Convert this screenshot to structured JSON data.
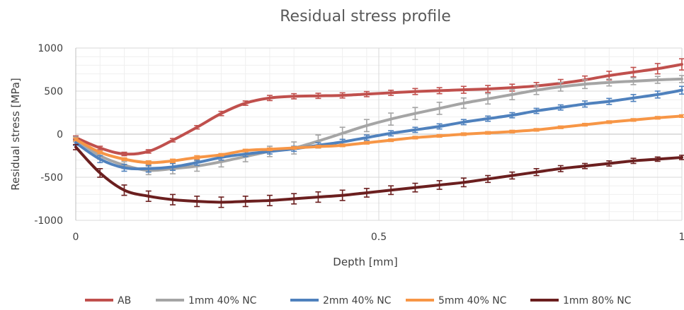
{
  "chart_data": {
    "type": "line",
    "title": "Residual stress profile",
    "xlabel": "Depth [mm]",
    "ylabel": "Residual stress [MPa]",
    "xlim": [
      0,
      1
    ],
    "ylim": [
      -1000,
      1000
    ],
    "x_ticks": [
      "0",
      "0.5",
      "1"
    ],
    "y_ticks": [
      "1000",
      "500",
      "0",
      "-500",
      "-1000"
    ],
    "grid": true,
    "legend_position": "bottom",
    "x": [
      0,
      0.04,
      0.08,
      0.12,
      0.16,
      0.2,
      0.24,
      0.28,
      0.32,
      0.36,
      0.4,
      0.44,
      0.48,
      0.52,
      0.56,
      0.6,
      0.64,
      0.68,
      0.72,
      0.76,
      0.8,
      0.84,
      0.88,
      0.92,
      0.96,
      1.0
    ],
    "series": [
      {
        "name": "AB",
        "color": "#c0504d",
        "values": [
          -40,
          -160,
          -230,
          -200,
          -70,
          80,
          240,
          360,
          420,
          440,
          445,
          450,
          465,
          480,
          495,
          505,
          515,
          525,
          540,
          560,
          590,
          630,
          680,
          720,
          760,
          810
        ],
        "error": [
          20,
          20,
          20,
          20,
          20,
          20,
          25,
          25,
          30,
          30,
          30,
          30,
          30,
          30,
          35,
          35,
          40,
          40,
          40,
          40,
          45,
          45,
          50,
          55,
          60,
          65
        ]
      },
      {
        "name": "1mm 40% NC",
        "color": "#a5a5a5",
        "values": [
          -60,
          -250,
          -360,
          -420,
          -400,
          -370,
          -320,
          -260,
          -200,
          -160,
          -80,
          10,
          100,
          175,
          240,
          300,
          360,
          410,
          460,
          510,
          550,
          580,
          600,
          615,
          630,
          640
        ],
        "error": [
          30,
          40,
          40,
          50,
          60,
          60,
          60,
          60,
          60,
          70,
          70,
          70,
          70,
          70,
          70,
          70,
          60,
          60,
          60,
          50,
          50,
          50,
          40,
          40,
          40,
          40
        ]
      },
      {
        "name": "2mm 40% NC",
        "color": "#4f81bd",
        "values": [
          -100,
          -290,
          -390,
          -400,
          -380,
          -330,
          -270,
          -230,
          -200,
          -170,
          -130,
          -90,
          -40,
          10,
          50,
          90,
          140,
          180,
          220,
          270,
          310,
          350,
          380,
          420,
          460,
          510
        ],
        "error": [
          30,
          40,
          40,
          40,
          40,
          30,
          30,
          30,
          30,
          30,
          30,
          30,
          30,
          30,
          30,
          30,
          30,
          30,
          30,
          30,
          30,
          35,
          35,
          40,
          40,
          45
        ]
      },
      {
        "name": "5mm 40% NC",
        "color": "#f79646",
        "values": [
          -60,
          -210,
          -290,
          -330,
          -310,
          -270,
          -240,
          -190,
          -175,
          -160,
          -145,
          -130,
          -100,
          -70,
          -40,
          -20,
          0,
          15,
          30,
          50,
          80,
          110,
          140,
          165,
          190,
          210
        ],
        "error": [
          15,
          15,
          15,
          20,
          20,
          20,
          15,
          15,
          15,
          15,
          15,
          15,
          15,
          15,
          15,
          15,
          15,
          15,
          15,
          15,
          15,
          15,
          15,
          15,
          15,
          15
        ]
      },
      {
        "name": "1mm 80% NC",
        "color": "#6b1f1f",
        "values": [
          -150,
          -450,
          -650,
          -720,
          -760,
          -780,
          -790,
          -780,
          -770,
          -750,
          -730,
          -710,
          -680,
          -650,
          -620,
          -590,
          -560,
          -520,
          -480,
          -440,
          -400,
          -370,
          -340,
          -310,
          -290,
          -270
        ],
        "error": [
          30,
          50,
          60,
          60,
          60,
          60,
          60,
          60,
          60,
          60,
          60,
          60,
          50,
          50,
          50,
          50,
          50,
          40,
          40,
          40,
          35,
          30,
          30,
          30,
          25,
          25
        ]
      }
    ]
  }
}
